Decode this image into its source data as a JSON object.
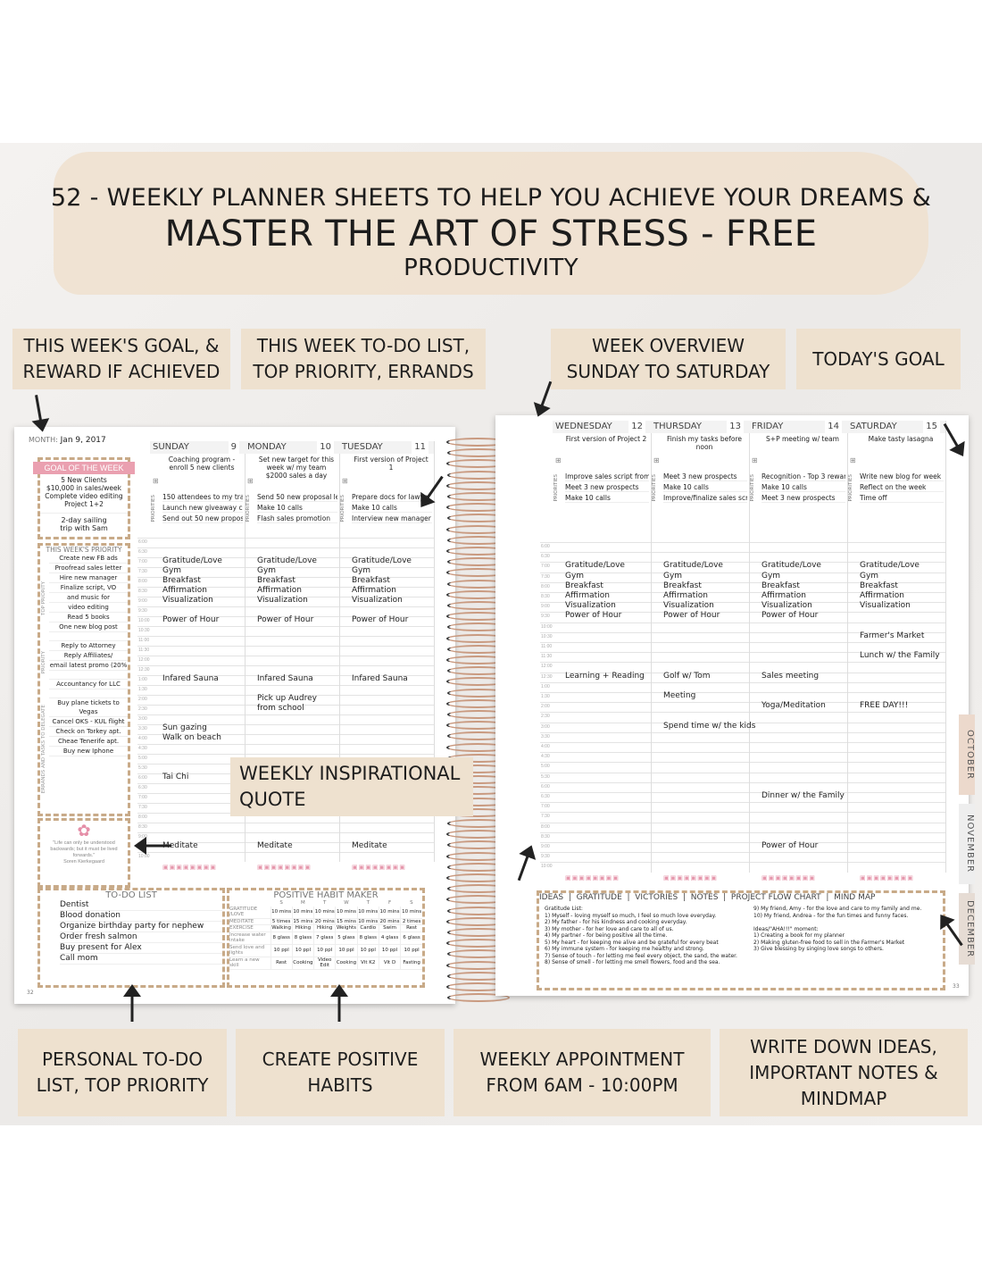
{
  "headline": {
    "line1": "52 - WEEKLY PLANNER  SHEETS TO HELP YOU ACHIEVE YOUR DREAMS &",
    "line2": "MASTER THE ART OF STRESS - FREE",
    "line3": "PRODUCTIVITY"
  },
  "callouts_top": [
    "THIS WEEK'S GOAL, & REWARD IF ACHIEVED",
    "THIS WEEK TO-DO LIST, TOP PRIORITY, ERRANDS",
    "WEEK OVERVIEW SUNDAY TO SATURDAY",
    "TODAY'S GOAL"
  ],
  "callout_quote": "WEEKLY INSPIRATIONAL QUOTE",
  "callouts_bottom": [
    "PERSONAL TO-DO LIST, TOP PRIORITY",
    "CREATE POSITIVE HABITS",
    "WEEKLY APPOINTMENT FROM 6AM - 10:00PM",
    "WRITE DOWN IDEAS, IMPORTANT NOTES & MINDMAP"
  ],
  "tabs": [
    "OCTOBER",
    "NOVEMBER",
    "DECEMBER"
  ],
  "left_page": {
    "month_label": "MONTH:",
    "month_value": "Jan 9, 2017",
    "goal_title": "GOAL OF THE WEEK",
    "goal_lines": [
      "5 New Clients",
      "$10,000 in sales/week",
      "Complete video editing",
      "Project 1+2"
    ],
    "reward_label": "REWARD IF ACHIEVED",
    "reward": [
      "2-day sailing",
      "trip with Sam"
    ],
    "priority_title": "THIS WEEK'S PRIORITY",
    "side_labels": [
      "TOP PRIORITY",
      "PRIORITY",
      "ERRANDS AND TASKS TO DELEGATE"
    ],
    "priority_items": [
      "Create new FB ads",
      "Proofread sales letter",
      "Hire new manager",
      "Finalize script, VO",
      "and music for",
      "video editing",
      "Read 5 books",
      "One new blog post",
      "",
      "Reply to Attorney",
      "Reply Affiliates/",
      "email latest promo (20%",
      "",
      "Accountancy for LLC",
      "",
      "Buy plane tickets to Vegas",
      "Cancel OKS - KUL flight",
      "Check on Torkey apt.",
      "Cheae Tenerife apt.",
      "Buy new Iphone"
    ],
    "quote": "\"Life can only be understood backwards; but it must be lived forwards.\"",
    "quote_author": "Soren Kierkegaard",
    "page_number": "32",
    "days": [
      {
        "name": "SUNDAY",
        "date": "9",
        "goal": "Coaching program - enroll 5 new clients",
        "priorities": [
          "150 attendees to my training",
          "Launch new giveaway contest",
          "Send out 50 new proposal letters"
        ],
        "entries": [
          [
            "7:00",
            "Gratitude/Love"
          ],
          [
            "7:30",
            "Gym"
          ],
          [
            "8:00",
            "Breakfast"
          ],
          [
            "8:30",
            "Affirmation"
          ],
          [
            "9:00",
            "Visualization"
          ],
          [
            "10:00",
            "Power of Hour"
          ],
          [
            "1:00",
            "Infared Sauna"
          ],
          [
            "3:30",
            "Sun gazing"
          ],
          [
            "4:00",
            "Walk on beach"
          ],
          [
            "6:00",
            "Tai Chi"
          ],
          [
            "9:30",
            "Meditate"
          ]
        ]
      },
      {
        "name": "MONDAY",
        "date": "10",
        "goal": "Set new target for this week w/ my team $2000 sales a day",
        "priorities": [
          "Send 50 new proposal letters",
          "Make 10 calls",
          "Flash sales promotion"
        ],
        "entries": [
          [
            "7:00",
            "Gratitude/Love"
          ],
          [
            "7:30",
            "Gym"
          ],
          [
            "8:00",
            "Breakfast"
          ],
          [
            "8:30",
            "Affirmation"
          ],
          [
            "9:00",
            "Visualization"
          ],
          [
            "10:00",
            "Power of Hour"
          ],
          [
            "1:00",
            "Infared Sauna"
          ],
          [
            "2:00",
            "Pick up Audrey"
          ],
          [
            "2:30",
            "from school"
          ],
          [
            "9:30",
            "Meditate"
          ]
        ]
      },
      {
        "name": "TUESDAY",
        "date": "11",
        "goal": "First version of Project 1",
        "priorities": [
          "Prepare docs for lawyer",
          "Make 10 calls",
          "Interview new manager"
        ],
        "entries": [
          [
            "7:00",
            "Gratitude/Love"
          ],
          [
            "7:30",
            "Gym"
          ],
          [
            "8:00",
            "Breakfast"
          ],
          [
            "8:30",
            "Affirmation"
          ],
          [
            "9:00",
            "Visualization"
          ],
          [
            "10:00",
            "Power of Hour"
          ],
          [
            "1:00",
            "Infared Sauna"
          ],
          [
            "9:30",
            "Meditate"
          ]
        ]
      }
    ],
    "todo_title": "TO-DO LIST",
    "todo_items": [
      "Dentist",
      "Blood donation",
      "Organize birthday party for nephew",
      "Order fresh salmon",
      "Buy present for Alex",
      "Call mom"
    ],
    "habit_title": "POSITIVE HABIT MAKER",
    "habit_days": [
      "S",
      "M",
      "T",
      "W",
      "T",
      "F",
      "S"
    ],
    "habits": [
      {
        "name": "GRATITUDE /LOVE",
        "values": [
          "10 mins",
          "10 mins",
          "10 mins",
          "10 mins",
          "10 mins",
          "10 mins",
          "10 mins"
        ]
      },
      {
        "name": "MEDITATE",
        "values": [
          "5 times",
          "15 mins",
          "20 mins",
          "15 mins",
          "10 mins",
          "20 mins",
          "2 times"
        ]
      },
      {
        "name": "EXERCISE",
        "values": [
          "Walking",
          "Hiking",
          "Hiking",
          "Weights",
          "Cardio",
          "Swim",
          "Rest"
        ]
      },
      {
        "name": "Increase water intake",
        "values": [
          "8 glass",
          "8 glass",
          "7 glass",
          "5 glass",
          "8 glass",
          "4 glass",
          "6 glass"
        ]
      },
      {
        "name": "Send love and lights",
        "values": [
          "10 ppl",
          "10 ppl",
          "10 ppl",
          "10 ppl",
          "10 ppl",
          "10 ppl",
          "10 ppl"
        ]
      },
      {
        "name": "Learn a new skill",
        "values": [
          "Rest",
          "Cooking",
          "Video Edit",
          "Cooking",
          "Vit K2",
          "Vit D",
          "Fasting"
        ]
      }
    ]
  },
  "times": [
    "6:00",
    "6:30",
    "7:00",
    "7:30",
    "8:00",
    "8:30",
    "9:00",
    "9:30",
    "10:00",
    "10:30",
    "11:00",
    "11:30",
    "12:00",
    "12:30",
    "1:00",
    "1:30",
    "2:00",
    "2:30",
    "3:00",
    "3:30",
    "4:00",
    "4:30",
    "5:00",
    "5:30",
    "6:00",
    "6:30",
    "7:00",
    "7:30",
    "8:00",
    "8:30",
    "9:00",
    "9:30",
    "10:00"
  ],
  "right_page": {
    "priorities_label": "PRIORITIES",
    "goal_label": "TODAY'S GOAL",
    "days": [
      {
        "name": "WEDNESDAY",
        "date": "12",
        "goal": "First version of Project 2",
        "priorities": [
          "Improve sales script from project 2",
          "Meet 3 new prospects",
          "Make 10 calls"
        ],
        "entries": [
          [
            "7:00",
            "Gratitude/Love"
          ],
          [
            "7:30",
            "Gym"
          ],
          [
            "8:00",
            "Breakfast"
          ],
          [
            "8:30",
            "Affirmation"
          ],
          [
            "9:00",
            "Visualization"
          ],
          [
            "9:30",
            "Power of Hour"
          ],
          [
            "12:30",
            "Learning + Reading"
          ]
        ]
      },
      {
        "name": "THURSDAY",
        "date": "13",
        "goal": "Finish my tasks before noon",
        "priorities": [
          "Meet 3 new prospects",
          "Make 10 calls",
          "Improve/finalize sales script Project 2"
        ],
        "entries": [
          [
            "7:00",
            "Gratitude/Love"
          ],
          [
            "7:30",
            "Gym"
          ],
          [
            "8:00",
            "Breakfast"
          ],
          [
            "8:30",
            "Affirmation"
          ],
          [
            "9:00",
            "Visualization"
          ],
          [
            "9:30",
            "Power of Hour"
          ],
          [
            "12:30",
            "Golf w/ Tom"
          ],
          [
            "1:30",
            "Meeting"
          ],
          [
            "3:00",
            "Spend time w/ the kids"
          ]
        ]
      },
      {
        "name": "FRIDAY",
        "date": "14",
        "goal": "S+P meeting w/ team",
        "priorities": [
          "Recognition - Top 3 rewards",
          "Make 10 calls",
          "Meet 3 new prospects"
        ],
        "entries": [
          [
            "7:00",
            "Gratitude/Love"
          ],
          [
            "7:30",
            "Gym"
          ],
          [
            "8:00",
            "Breakfast"
          ],
          [
            "8:30",
            "Affirmation"
          ],
          [
            "9:00",
            "Visualization"
          ],
          [
            "9:30",
            "Power of Hour"
          ],
          [
            "12:30",
            "Sales meeting"
          ],
          [
            "2:00",
            "Yoga/Meditation"
          ],
          [
            "6:30",
            "Dinner w/ the Family"
          ],
          [
            "9:00",
            "Power of Hour"
          ]
        ]
      },
      {
        "name": "SATURDAY",
        "date": "15",
        "goal": "Make tasty lasagna",
        "priorities": [
          "Write new blog for week",
          "Reflect on the week",
          "Time off"
        ],
        "entries": [
          [
            "7:00",
            "Gratitude/Love"
          ],
          [
            "7:30",
            "Gym"
          ],
          [
            "8:00",
            "Breakfast"
          ],
          [
            "8:30",
            "Affirmation"
          ],
          [
            "9:00",
            "Visualization"
          ],
          [
            "10:30",
            "Farmer's Market"
          ],
          [
            "11:30",
            "Lunch w/ the Family"
          ],
          [
            "2:00",
            "FREE DAY!!!"
          ]
        ]
      }
    ],
    "notes_header": "IDEAS  |  GRATITUDE  |  VICTORIES  |  NOTES  |  PROJECT FLOW CHART  |  MIND MAP",
    "notes_left": [
      "Gratitude List:",
      "1) Myself - loving myself so much, I feel so much love everyday.",
      "2) My father - for his kindness and cooking everyday.",
      "3) My mother - for her love and care to all of us.",
      "4) My partner - for being positive all the time.",
      "5) My heart - for keeping me alive and be grateful for every beat",
      "6) My immune system - for keeping me healthy and strong.",
      "7) Sense of touch - for letting me feel every object, the sand, the water.",
      "8) Sense of smell - for letting me smell flowers, food and the sea."
    ],
    "notes_right": [
      "9) My friend, Amy - for the love and care to my family and me.",
      "10) My friend, Andrea - for the fun times and funny faces.",
      "",
      "Ideas/\"AHA!!!\" moment:",
      "1) Creating a book for my planner",
      "2) Making gluten-free food to sell in the Farmer's Market",
      "3) Give blessing by singing love songs to others."
    ],
    "page_number": "33"
  }
}
